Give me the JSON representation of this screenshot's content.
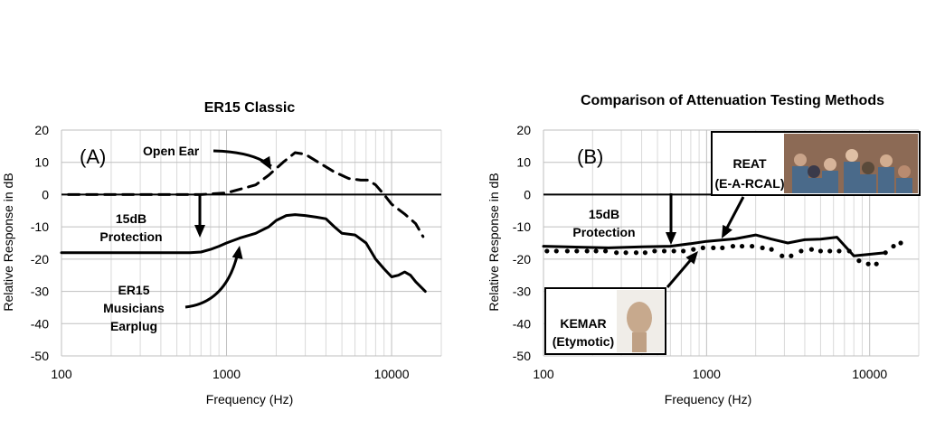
{
  "chart_data": [
    {
      "type": "line",
      "title": "ER15 Classic",
      "panel_label": "(A)",
      "xlabel": "Frequency (Hz)",
      "ylabel": "Relative Response in dB",
      "x_scale": "log",
      "xlim": [
        100,
        20000
      ],
      "ylim": [
        -50,
        20
      ],
      "x_ticks": [
        "100",
        "1000",
        "10000"
      ],
      "y_ticks": [
        "20",
        "10",
        "0",
        "-10",
        "-20",
        "-30",
        "-40",
        "-50"
      ],
      "grid": true,
      "series": [
        {
          "name": "Open Ear",
          "style": "dashed",
          "color": "#000000",
          "x": [
            110,
            200,
            400,
            700,
            1000,
            1500,
            1800,
            2200,
            2600,
            3000,
            3600,
            4500,
            5500,
            6500,
            7200,
            8000,
            9000,
            10000,
            12000,
            14000,
            15500
          ],
          "y": [
            0,
            0,
            0,
            0,
            0.5,
            3,
            6,
            10,
            13,
            12.5,
            10,
            7,
            5,
            4.5,
            4.5,
            3,
            0,
            -3,
            -6,
            -9,
            -13
          ]
        },
        {
          "name": "ER15 Musicians Earplug",
          "style": "solid",
          "color": "#000000",
          "x": [
            100,
            200,
            400,
            600,
            700,
            800,
            900,
            1000,
            1200,
            1500,
            1800,
            2000,
            2300,
            2600,
            3000,
            3500,
            4000,
            4500,
            5000,
            6000,
            7000,
            8000,
            9000,
            10000,
            11000,
            12000,
            13000,
            14000,
            16000
          ],
          "y": [
            -18,
            -18,
            -18,
            -18,
            -17.8,
            -17,
            -16,
            -15,
            -13.5,
            -12,
            -10,
            -8,
            -6.5,
            -6.2,
            -6.5,
            -7,
            -7.5,
            -10,
            -12,
            -12.5,
            -15,
            -20,
            -23,
            -25.5,
            -25,
            -24,
            -25,
            -27,
            -30
          ]
        }
      ],
      "annotations": [
        {
          "text": [
            "Open Ear"
          ]
        },
        {
          "text": [
            "15dB",
            "Protection"
          ]
        },
        {
          "text": [
            "ER15",
            "Musicians",
            "Earplug"
          ]
        }
      ]
    },
    {
      "type": "line",
      "title": "Comparison of Attenuation Testing Methods",
      "panel_label": "(B)",
      "xlabel": "Frequency (Hz)",
      "ylabel": "Relative Response in dB",
      "x_scale": "log",
      "xlim": [
        100,
        20000
      ],
      "ylim": [
        -50,
        20
      ],
      "x_ticks": [
        "100",
        "1000",
        "10000"
      ],
      "y_ticks": [
        "20",
        "10",
        "0",
        "-10",
        "-20",
        "-30",
        "-40",
        "-50"
      ],
      "grid": true,
      "series": [
        {
          "name": "REAT (E-A-RCAL)",
          "style": "solid",
          "color": "#000000",
          "x": [
            100,
            250,
            400,
            600,
            800,
            1000,
            1500,
            2000,
            2500,
            3150,
            4000,
            5000,
            6300,
            8000,
            10000,
            12500
          ],
          "y": [
            -16,
            -16.5,
            -16.2,
            -16,
            -15.2,
            -14.5,
            -13.7,
            -12.5,
            -13.8,
            -15,
            -14,
            -13.8,
            -13.2,
            -19,
            -18.5,
            -18
          ]
        },
        {
          "name": "KEMAR (Etymotic)",
          "style": "dotted",
          "color": "#000000",
          "x": [
            105,
            120,
            140,
            160,
            185,
            210,
            240,
            280,
            320,
            370,
            420,
            480,
            550,
            630,
            720,
            830,
            950,
            1100,
            1250,
            1450,
            1650,
            1900,
            2200,
            2500,
            2900,
            3300,
            3800,
            4400,
            5000,
            5700,
            6500,
            7500,
            8600,
            9800,
            11000,
            12500,
            14000,
            15500
          ],
          "y": [
            -17.5,
            -17.5,
            -17.5,
            -17.5,
            -17.5,
            -17.5,
            -17.5,
            -18,
            -18,
            -18,
            -18,
            -17.5,
            -17.5,
            -17.5,
            -17.5,
            -17,
            -16.5,
            -16.5,
            -16.5,
            -16,
            -16,
            -16,
            -16.5,
            -17,
            -19,
            -19,
            -17.5,
            -17,
            -17.5,
            -17.5,
            -17.5,
            -17.5,
            -20.5,
            -21.5,
            -21.5,
            -18,
            -16,
            -15
          ]
        }
      ],
      "annotations": [
        {
          "text": [
            "15dB",
            "Protection"
          ]
        },
        {
          "text": [
            "REAT",
            "(E-A-RCAL)"
          ]
        },
        {
          "text": [
            "KEMAR",
            "(Etymotic)"
          ]
        }
      ]
    }
  ]
}
